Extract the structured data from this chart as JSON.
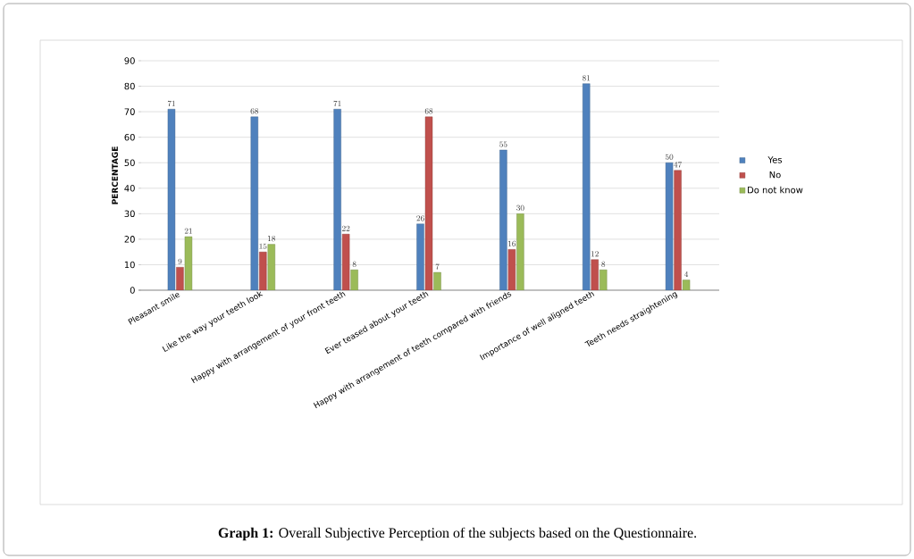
{
  "chart_data": {
    "type": "bar",
    "ylabel": "PERCENTAGE",
    "categories": [
      "Pleasant smile",
      "Like the way your teeth look",
      "Happy with arrangement of your front teeth",
      "Ever teased about your teeth",
      "Happy with arrangement of teeth compared with friends",
      "Importance of well aligned teeth",
      "Teeth needs straightening"
    ],
    "series": [
      {
        "name": "Yes",
        "color": "#4f81bd",
        "values": [
          71,
          68,
          71,
          26,
          55,
          81,
          50
        ]
      },
      {
        "name": "No",
        "color": "#c0504d",
        "values": [
          9,
          15,
          22,
          68,
          16,
          12,
          47
        ]
      },
      {
        "name": "Do not know",
        "color": "#9bbb59",
        "values": [
          21,
          18,
          8,
          7,
          30,
          8,
          4
        ]
      }
    ],
    "ylim": [
      0,
      90
    ],
    "yticks": [
      0,
      10,
      20,
      30,
      40,
      50,
      60,
      70,
      80,
      90
    ],
    "grid": "y",
    "legend": "right",
    "data_labels": true,
    "annotations": [
      "**Graph 1:** Overall Subjective Perception of the subjects based on the Questionnaire."
    ]
  }
}
